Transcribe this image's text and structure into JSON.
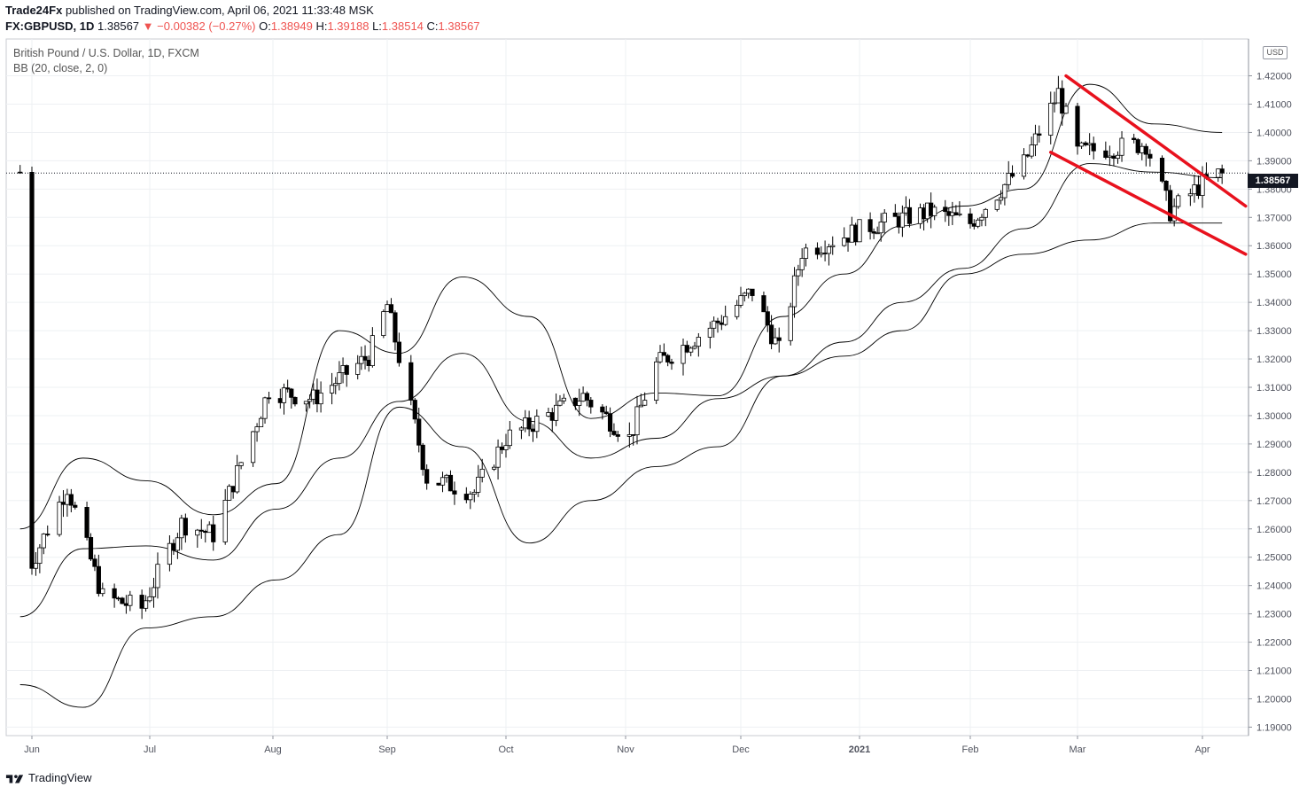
{
  "header": {
    "publisher": "Trade24Fx",
    "published_text": " published on TradingView.com, April 06, 2021 11:33:48 MSK"
  },
  "quote": {
    "symbol": "FX:GBPUSD, 1D",
    "last": "1.38567",
    "change": "−0.00382 (−0.27%)",
    "o_label": "O:",
    "o": "1.38949",
    "h_label": "H:",
    "h": "1.39188",
    "l_label": "L:",
    "l": "1.38514",
    "c_label": "C:",
    "c": "1.38567"
  },
  "legend": {
    "instrument": "British Pound / U.S. Dollar, 1D, FXCM",
    "indicator": "BB (20, close, 2, 0)"
  },
  "currency_button": "USD",
  "last_price_tag": "1.38567",
  "branding": "TradingView",
  "colors": {
    "trendline": "#e8111d",
    "candle_up": "#ffffff",
    "candle_down": "#000000",
    "bands": "#000000",
    "grid": "#eef0f3",
    "price_tag_bg": "#131722"
  },
  "chart_data": {
    "type": "candlestick",
    "indicator": "Bollinger Bands (20, 2)",
    "y_axis": {
      "ticks": [
        "1.42000",
        "1.41000",
        "1.40000",
        "1.39000",
        "1.38000",
        "1.37000",
        "1.36000",
        "1.35000",
        "1.34000",
        "1.33000",
        "1.32000",
        "1.31000",
        "1.30000",
        "1.29000",
        "1.28000",
        "1.27000",
        "1.26000",
        "1.25000",
        "1.24000",
        "1.23000",
        "1.22000",
        "1.21000",
        "1.20000",
        "1.19000"
      ],
      "ylim": [
        1.187,
        1.433
      ]
    },
    "x_axis": {
      "ticks": [
        "Jun",
        "Jul",
        "Aug",
        "Sep",
        "Oct",
        "Nov",
        "Dec",
        "2021",
        "Feb",
        "Mar",
        "Apr"
      ]
    },
    "last_price": 1.38567,
    "close_approx": [
      {
        "date": "2020-06-01",
        "close": 1.248
      },
      {
        "date": "2020-06-10",
        "close": 1.275
      },
      {
        "date": "2020-06-19",
        "close": 1.236
      },
      {
        "date": "2020-06-29",
        "close": 1.232
      },
      {
        "date": "2020-07-09",
        "close": 1.262
      },
      {
        "date": "2020-07-17",
        "close": 1.258
      },
      {
        "date": "2020-07-31",
        "close": 1.309
      },
      {
        "date": "2020-08-12",
        "close": 1.306
      },
      {
        "date": "2020-08-27",
        "close": 1.321
      },
      {
        "date": "2020-09-01",
        "close": 1.339
      },
      {
        "date": "2020-09-11",
        "close": 1.278
      },
      {
        "date": "2020-09-23",
        "close": 1.273
      },
      {
        "date": "2020-10-01",
        "close": 1.292
      },
      {
        "date": "2020-10-21",
        "close": 1.307
      },
      {
        "date": "2020-11-02",
        "close": 1.292
      },
      {
        "date": "2020-11-09",
        "close": 1.318
      },
      {
        "date": "2020-11-26",
        "close": 1.334
      },
      {
        "date": "2020-12-04",
        "close": 1.344
      },
      {
        "date": "2020-12-11",
        "close": 1.323
      },
      {
        "date": "2020-12-17",
        "close": 1.358
      },
      {
        "date": "2021-01-04",
        "close": 1.367
      },
      {
        "date": "2021-01-21",
        "close": 1.372
      },
      {
        "date": "2021-02-01",
        "close": 1.368
      },
      {
        "date": "2021-02-15",
        "close": 1.389
      },
      {
        "date": "2021-02-24",
        "close": 1.414
      },
      {
        "date": "2021-03-01",
        "close": 1.393
      },
      {
        "date": "2021-03-18",
        "close": 1.396
      },
      {
        "date": "2021-03-24",
        "close": 1.372
      },
      {
        "date": "2021-04-01",
        "close": 1.382
      },
      {
        "date": "2021-04-06",
        "close": 1.386
      }
    ],
    "bollinger": {
      "upper": [
        1.26,
        1.285,
        1.277,
        1.265,
        1.276,
        1.33,
        1.322,
        1.349,
        1.335,
        1.299,
        1.308,
        1.307,
        1.335,
        1.35,
        1.367,
        1.374,
        1.38,
        1.417,
        1.403,
        1.4
      ],
      "middle": [
        1.229,
        1.253,
        1.254,
        1.249,
        1.267,
        1.285,
        1.305,
        1.322,
        1.298,
        1.285,
        1.292,
        1.306,
        1.314,
        1.326,
        1.34,
        1.352,
        1.366,
        1.389,
        1.386,
        1.384
      ],
      "lower": [
        1.205,
        1.197,
        1.225,
        1.229,
        1.242,
        1.258,
        1.303,
        1.289,
        1.255,
        1.27,
        1.282,
        1.289,
        1.314,
        1.321,
        1.33,
        1.35,
        1.357,
        1.362,
        1.368,
        1.368
      ]
    },
    "annotations": [
      {
        "type": "trendline",
        "color": "red",
        "from": {
          "date": "2021-02-26",
          "price": 1.42
        },
        "to": {
          "date": "2021-04-12",
          "price": 1.374
        }
      },
      {
        "type": "trendline",
        "color": "red",
        "from": {
          "date": "2021-02-22",
          "price": 1.393
        },
        "to": {
          "date": "2021-04-12",
          "price": 1.357
        }
      }
    ]
  }
}
